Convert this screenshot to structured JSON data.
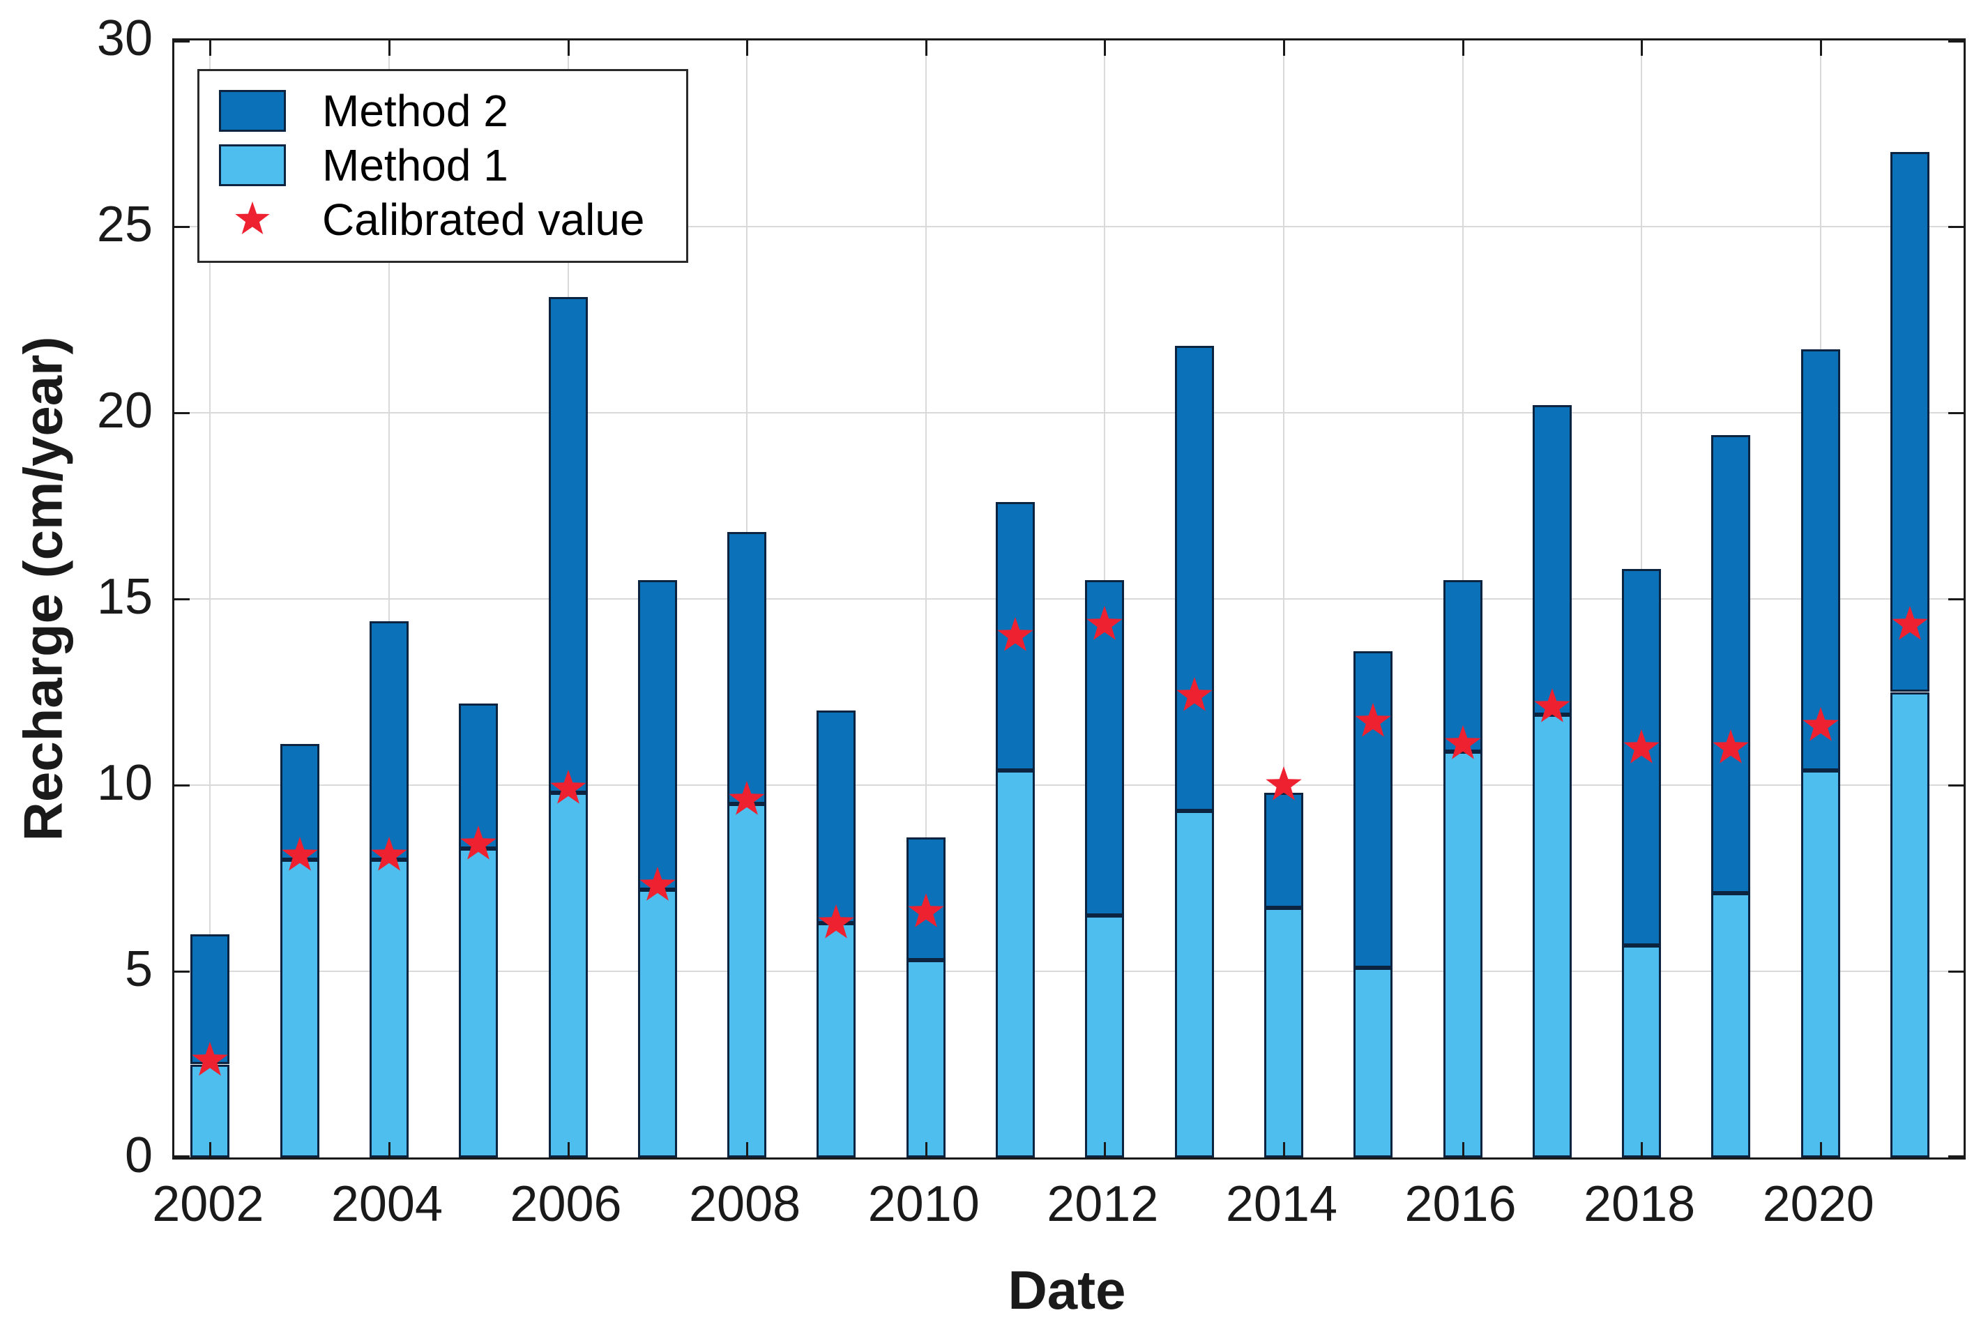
{
  "figure": {
    "background": "#ffffff",
    "xlabel": "Date",
    "ylabel": "Recharge (cm/year)"
  },
  "legend": {
    "position": "top-left",
    "items": [
      {
        "label": "Method 2",
        "swatch": "method2-color"
      },
      {
        "label": "Method 1",
        "swatch": "method1-color"
      },
      {
        "label": "Calibrated value",
        "swatch": "star-marker"
      }
    ]
  },
  "colors": {
    "method2": "#0b72b9",
    "method1": "#4dbeee",
    "star": "#ee2130",
    "bar_edge": "#0d2440",
    "grid": "#d9d9d9",
    "axis": "#1a1a1a"
  },
  "chart_data": {
    "type": "bar",
    "stacked": true,
    "title": "",
    "xlabel": "Date",
    "ylabel": "Recharge (cm/year)",
    "ylim": [
      0,
      30
    ],
    "yticks": [
      0,
      5,
      10,
      15,
      20,
      25,
      30
    ],
    "xticks": [
      2002,
      2004,
      2006,
      2008,
      2010,
      2012,
      2014,
      2016,
      2018,
      2020
    ],
    "grid": true,
    "legend_position": "top-left",
    "categories": [
      2002,
      2003,
      2004,
      2005,
      2006,
      2007,
      2008,
      2009,
      2010,
      2011,
      2012,
      2013,
      2014,
      2015,
      2016,
      2017,
      2018,
      2019,
      2020,
      2021
    ],
    "series": [
      {
        "name": "Method 1",
        "color": "#4dbeee",
        "values": [
          2.5,
          8.0,
          8.0,
          8.3,
          9.8,
          7.2,
          9.5,
          6.3,
          5.3,
          10.4,
          6.5,
          9.3,
          6.7,
          5.1,
          10.9,
          11.9,
          5.7,
          7.1,
          10.4,
          12.5
        ]
      },
      {
        "name": "Method 2",
        "color": "#0b72b9",
        "values": [
          3.5,
          3.1,
          6.4,
          3.9,
          13.3,
          8.3,
          7.3,
          5.7,
          3.3,
          7.2,
          9.0,
          12.5,
          3.1,
          8.5,
          4.6,
          8.3,
          10.1,
          12.3,
          11.3,
          14.5
        ]
      }
    ],
    "stack_totals": [
      6.0,
      11.1,
      14.4,
      12.2,
      23.1,
      15.5,
      16.8,
      12.0,
      8.6,
      17.6,
      15.5,
      21.8,
      9.8,
      13.6,
      15.5,
      20.2,
      15.8,
      19.4,
      21.7,
      27.0
    ],
    "overlay": {
      "type": "scatter",
      "name": "Calibrated value",
      "marker": "star",
      "color": "#ee2130",
      "values": [
        2.6,
        8.1,
        8.1,
        8.4,
        9.9,
        7.3,
        9.6,
        6.3,
        6.6,
        14.0,
        14.3,
        12.4,
        10.0,
        11.7,
        11.1,
        12.1,
        11.0,
        11.0,
        11.6,
        14.3
      ]
    }
  }
}
